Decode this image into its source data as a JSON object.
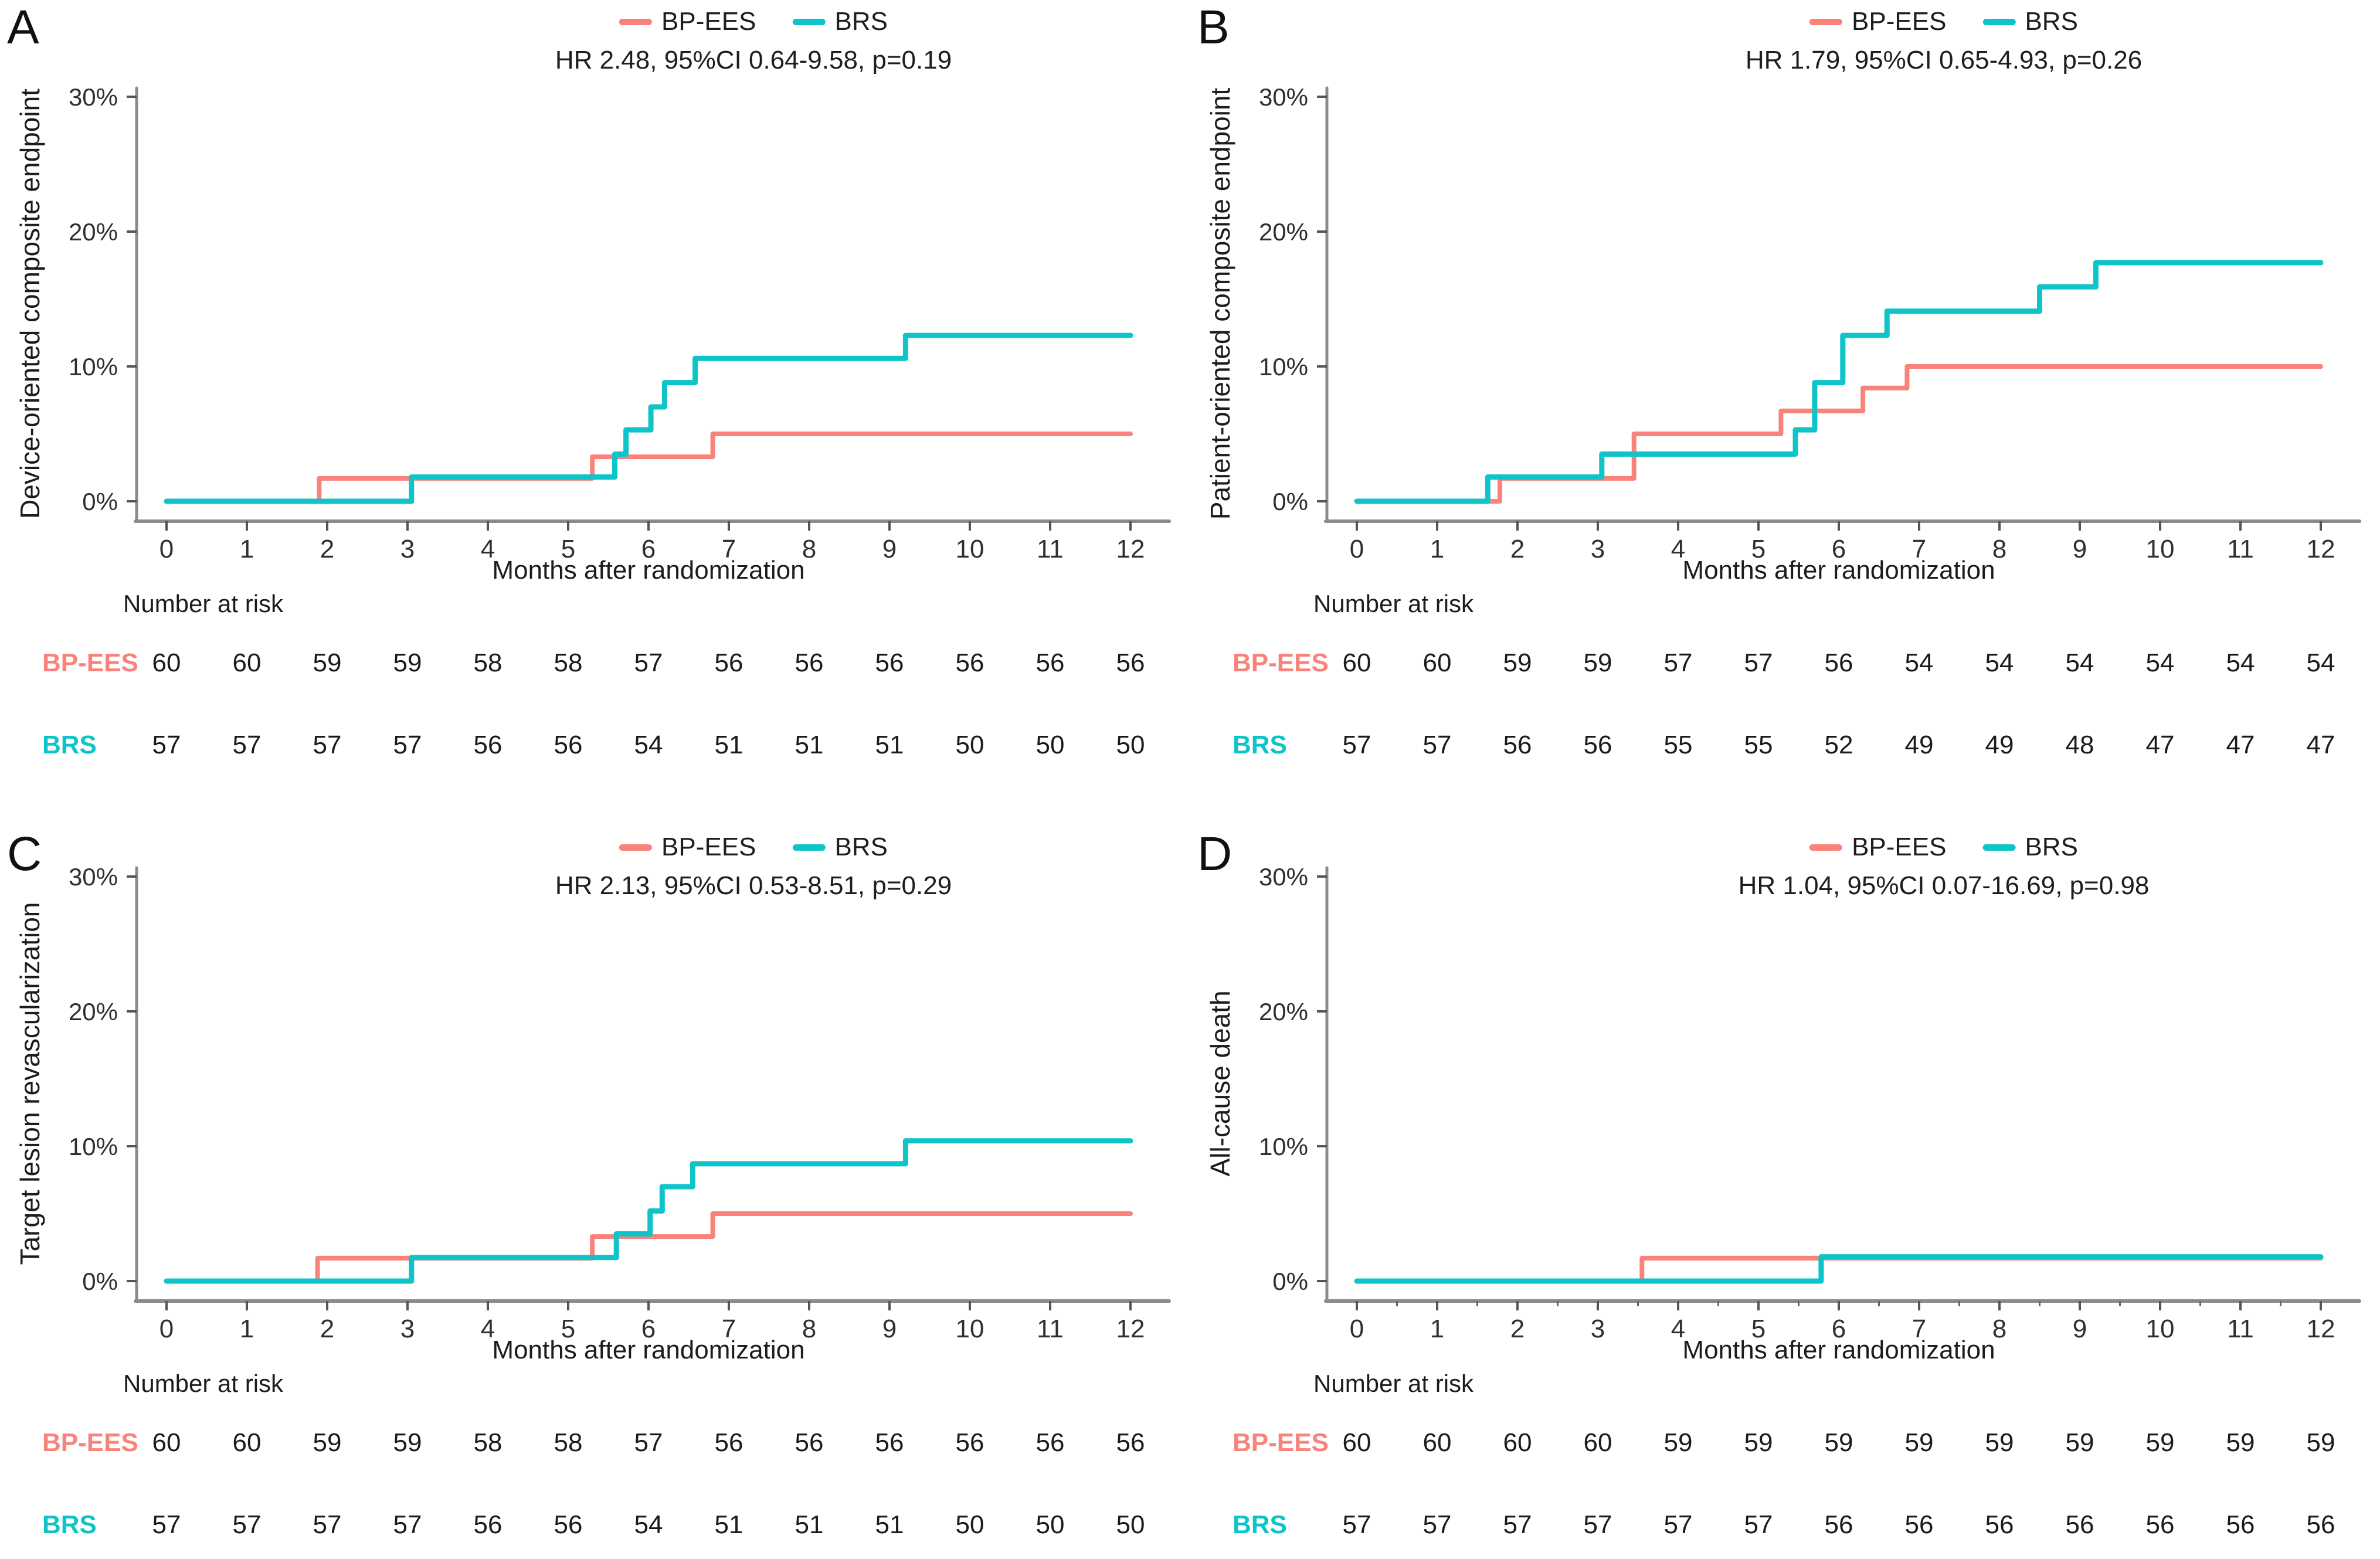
{
  "page": {
    "background": "#ffffff"
  },
  "chart_data": [
    {
      "type": "line",
      "subtype": "kaplan-meier-step",
      "panel_label": "A",
      "y_label": "Device-oriented composite endpoint",
      "annotation": "HR 2.48, 95%CI 0.64-9.58, p=0.19",
      "x_label": "Months after randomization",
      "x_ticks": [
        0,
        1,
        2,
        3,
        4,
        5,
        6,
        7,
        8,
        9,
        10,
        11,
        12
      ],
      "y_ticks_percent": [
        0,
        10,
        20,
        30
      ],
      "xlim": [
        0,
        12.5
      ],
      "ylim": [
        0,
        31
      ],
      "grid": false,
      "legend_position": "top-center",
      "x_minor_ticks": false,
      "series": [
        {
          "name": "BP-EES",
          "color": "#f9837a",
          "steps": [
            [
              0,
              0
            ],
            [
              1.9,
              1.7
            ],
            [
              5.3,
              3.3
            ],
            [
              6.8,
              5.0
            ]
          ]
        },
        {
          "name": "BRS",
          "color": "#0fc4c8",
          "steps": [
            [
              0,
              0
            ],
            [
              3.05,
              1.8
            ],
            [
              5.58,
              3.5
            ],
            [
              5.72,
              5.3
            ],
            [
              6.03,
              7.0
            ],
            [
              6.2,
              8.8
            ],
            [
              6.58,
              10.6
            ],
            [
              9.2,
              12.3
            ]
          ]
        }
      ],
      "number_at_risk": {
        "label": "Number at risk",
        "months": [
          0,
          1,
          2,
          3,
          4,
          5,
          6,
          7,
          8,
          9,
          10,
          11,
          12
        ],
        "rows": [
          {
            "name": "BP-EES",
            "values": [
              60,
              60,
              59,
              59,
              58,
              58,
              57,
              56,
              56,
              56,
              56,
              56,
              56
            ]
          },
          {
            "name": "BRS",
            "values": [
              57,
              57,
              57,
              57,
              56,
              56,
              54,
              51,
              51,
              51,
              50,
              50,
              50
            ]
          }
        ]
      }
    },
    {
      "type": "line",
      "subtype": "kaplan-meier-step",
      "panel_label": "B",
      "y_label": "Patient-oriented composite endpoint",
      "annotation": "HR 1.79, 95%CI 0.65-4.93, p=0.26",
      "x_label": "Months after randomization",
      "x_ticks": [
        0,
        1,
        2,
        3,
        4,
        5,
        6,
        7,
        8,
        9,
        10,
        11,
        12
      ],
      "y_ticks_percent": [
        0,
        10,
        20,
        30
      ],
      "xlim": [
        0,
        12.5
      ],
      "ylim": [
        0,
        31
      ],
      "grid": false,
      "legend_position": "top-center",
      "x_minor_ticks": false,
      "series": [
        {
          "name": "BP-EES",
          "color": "#f9837a",
          "steps": [
            [
              0,
              0
            ],
            [
              1.78,
              1.7
            ],
            [
              3.45,
              5.0
            ],
            [
              5.28,
              6.7
            ],
            [
              6.3,
              8.4
            ],
            [
              6.85,
              10.0
            ]
          ]
        },
        {
          "name": "BRS",
          "color": "#0fc4c8",
          "steps": [
            [
              0,
              0
            ],
            [
              1.63,
              1.8
            ],
            [
              3.05,
              3.5
            ],
            [
              5.46,
              5.3
            ],
            [
              5.7,
              8.8
            ],
            [
              6.05,
              12.3
            ],
            [
              6.6,
              14.1
            ],
            [
              8.5,
              15.9
            ],
            [
              9.2,
              17.7
            ]
          ]
        }
      ],
      "number_at_risk": {
        "label": "Number at risk",
        "months": [
          0,
          1,
          2,
          3,
          4,
          5,
          6,
          7,
          8,
          9,
          10,
          11,
          12
        ],
        "rows": [
          {
            "name": "BP-EES",
            "values": [
              60,
              60,
              59,
              59,
              57,
              57,
              56,
              54,
              54,
              54,
              54,
              54,
              54
            ]
          },
          {
            "name": "BRS",
            "values": [
              57,
              57,
              56,
              56,
              55,
              55,
              52,
              49,
              49,
              48,
              47,
              47,
              47
            ]
          }
        ]
      }
    },
    {
      "type": "line",
      "subtype": "kaplan-meier-step",
      "panel_label": "C",
      "y_label": "Target lesion revascularization",
      "annotation": "HR 2.13, 95%CI 0.53-8.51, p=0.29",
      "x_label": "Months after randomization",
      "x_ticks": [
        0,
        1,
        2,
        3,
        4,
        5,
        6,
        7,
        8,
        9,
        10,
        11,
        12
      ],
      "y_ticks_percent": [
        0,
        10,
        20,
        30
      ],
      "xlim": [
        0,
        12.5
      ],
      "ylim": [
        0,
        31
      ],
      "grid": false,
      "legend_position": "top-center",
      "x_minor_ticks": false,
      "series": [
        {
          "name": "BP-EES",
          "color": "#f9837a",
          "steps": [
            [
              0,
              0
            ],
            [
              1.88,
              1.7
            ],
            [
              5.3,
              3.3
            ],
            [
              6.8,
              5.0
            ]
          ]
        },
        {
          "name": "BRS",
          "color": "#0fc4c8",
          "steps": [
            [
              0,
              0
            ],
            [
              3.05,
              1.75
            ],
            [
              5.6,
              3.5
            ],
            [
              6.02,
              5.2
            ],
            [
              6.17,
              7.0
            ],
            [
              6.55,
              8.7
            ],
            [
              9.2,
              10.4
            ]
          ]
        }
      ],
      "number_at_risk": {
        "label": "Number at risk",
        "months": [
          0,
          1,
          2,
          3,
          4,
          5,
          6,
          7,
          8,
          9,
          10,
          11,
          12
        ],
        "rows": [
          {
            "name": "BP-EES",
            "values": [
              60,
              60,
              59,
              59,
              58,
              58,
              57,
              56,
              56,
              56,
              56,
              56,
              56
            ]
          },
          {
            "name": "BRS",
            "values": [
              57,
              57,
              57,
              57,
              56,
              56,
              54,
              51,
              51,
              51,
              50,
              50,
              50
            ]
          }
        ]
      }
    },
    {
      "type": "line",
      "subtype": "kaplan-meier-step",
      "panel_label": "D",
      "y_label": "All-cause death",
      "annotation": "HR 1.04, 95%CI 0.07-16.69, p=0.98",
      "x_label": "Months after randomization",
      "x_ticks": [
        0,
        1,
        2,
        3,
        4,
        5,
        6,
        7,
        8,
        9,
        10,
        11,
        12
      ],
      "y_ticks_percent": [
        0,
        10,
        20,
        30
      ],
      "xlim": [
        0,
        12.5
      ],
      "ylim": [
        0,
        31
      ],
      "grid": false,
      "legend_position": "top-center",
      "x_minor_ticks": true,
      "series": [
        {
          "name": "BP-EES",
          "color": "#f9837a",
          "steps": [
            [
              0,
              0
            ],
            [
              3.55,
              1.7
            ]
          ]
        },
        {
          "name": "BRS",
          "color": "#0fc4c8",
          "steps": [
            [
              0,
              0
            ],
            [
              5.78,
              1.8
            ]
          ]
        }
      ],
      "number_at_risk": {
        "label": "Number at risk",
        "months": [
          0,
          1,
          2,
          3,
          4,
          5,
          6,
          7,
          8,
          9,
          10,
          11,
          12
        ],
        "rows": [
          {
            "name": "BP-EES",
            "values": [
              60,
              60,
              60,
              60,
              59,
              59,
              59,
              59,
              59,
              59,
              59,
              59,
              59
            ]
          },
          {
            "name": "BRS",
            "values": [
              57,
              57,
              57,
              57,
              57,
              57,
              56,
              56,
              56,
              56,
              56,
              56,
              56
            ]
          }
        ]
      }
    }
  ]
}
